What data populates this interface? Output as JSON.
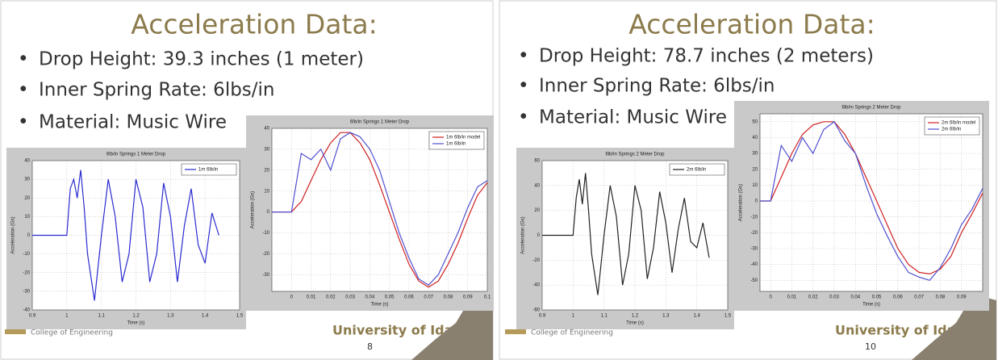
{
  "slides": [
    {
      "title": "Acceleration Data:",
      "bullets": [
        "Drop Height: 39.3 inches  (1 meter)",
        "Inner Spring Rate: 6lbs/in",
        "Material: Music Wire"
      ],
      "footer": {
        "college": "College of Engineering",
        "university": "University of Idaho",
        "page": "8"
      }
    },
    {
      "title": "Acceleration Data:",
      "bullets": [
        "Drop Height: 78.7 inches  (2 meters)",
        "Inner Spring Rate: 6lbs/in",
        "Material: Music Wire"
      ],
      "footer": {
        "college": "College of Engineering",
        "university": "University of Idaho",
        "page": "10"
      }
    }
  ],
  "chart_data": [
    {
      "type": "line",
      "title": "6lb/in Springs 1 Meter Drop",
      "xlabel": "Time (s)",
      "ylabel": "Acceleration (Gs)",
      "x": [
        0.9,
        0.95,
        1.0,
        1.01,
        1.02,
        1.03,
        1.04,
        1.05,
        1.06,
        1.08,
        1.1,
        1.12,
        1.14,
        1.16,
        1.18,
        1.2,
        1.22,
        1.24,
        1.26,
        1.28,
        1.3,
        1.32,
        1.34,
        1.36,
        1.38,
        1.4,
        1.42,
        1.44
      ],
      "series": [
        {
          "name": "1m 6lb/in",
          "color": "#2a2ad0",
          "values": [
            0,
            0,
            0,
            25,
            30,
            20,
            35,
            15,
            -10,
            -35,
            0,
            30,
            10,
            -25,
            -10,
            30,
            15,
            -25,
            -10,
            28,
            10,
            -25,
            5,
            25,
            -5,
            -15,
            12,
            0
          ]
        }
      ],
      "xlim": [
        0.9,
        1.5
      ],
      "xticks": [
        0.9,
        1,
        1.1,
        1.2,
        1.3,
        1.4,
        1.5
      ],
      "ylim": [
        -40,
        40
      ],
      "yticks": [
        -40,
        -30,
        -20,
        -10,
        0,
        10,
        20,
        30,
        40
      ],
      "grid": true,
      "legend": "upper right"
    },
    {
      "type": "line",
      "title": "6lb/in Springs 1 Meter Drop",
      "xlabel": "Time (s)",
      "ylabel": "Acceleration (Gs)",
      "x": [
        -0.01,
        -0.005,
        0,
        0.005,
        0.01,
        0.015,
        0.02,
        0.025,
        0.03,
        0.035,
        0.04,
        0.045,
        0.05,
        0.055,
        0.06,
        0.065,
        0.07,
        0.075,
        0.08,
        0.085,
        0.09,
        0.095,
        0.1
      ],
      "series": [
        {
          "name": "1m 6lb/in model",
          "color": "#d02020",
          "values": [
            0,
            0,
            0,
            5,
            15,
            25,
            33,
            38,
            38,
            33,
            25,
            13,
            0,
            -13,
            -25,
            -33,
            -36,
            -33,
            -25,
            -15,
            -3,
            8,
            14
          ]
        },
        {
          "name": "1m 6lb/in",
          "color": "#5050d0",
          "values": [
            0,
            0,
            0,
            28,
            25,
            30,
            20,
            35,
            38,
            36,
            30,
            20,
            5,
            -10,
            -22,
            -32,
            -35,
            -30,
            -20,
            -10,
            2,
            12,
            15
          ]
        }
      ],
      "xlim": [
        -0.01,
        0.1
      ],
      "xticks": [
        0,
        0.01,
        0.02,
        0.03,
        0.04,
        0.05,
        0.06,
        0.07,
        0.08,
        0.09,
        0.1
      ],
      "ylim": [
        -38,
        40
      ],
      "yticks": [
        -30,
        -20,
        -10,
        0,
        10,
        20,
        30,
        40
      ],
      "grid": true,
      "legend": "upper right"
    },
    {
      "type": "line",
      "title": "6lb/in Springs 2 Meter Drop",
      "xlabel": "Time (s)",
      "ylabel": "Acceleration (Gs)",
      "x": [
        0.9,
        0.95,
        1.0,
        1.01,
        1.02,
        1.03,
        1.04,
        1.05,
        1.06,
        1.08,
        1.1,
        1.12,
        1.14,
        1.16,
        1.18,
        1.2,
        1.22,
        1.24,
        1.26,
        1.28,
        1.3,
        1.32,
        1.34,
        1.36,
        1.38,
        1.4,
        1.42,
        1.44
      ],
      "series": [
        {
          "name": "2m 6lb/in",
          "color": "#222222",
          "values": [
            0,
            0,
            0,
            30,
            45,
            25,
            50,
            20,
            -15,
            -48,
            0,
            40,
            15,
            -40,
            -15,
            40,
            20,
            -35,
            -10,
            35,
            10,
            -30,
            5,
            30,
            -5,
            -10,
            10,
            -18
          ]
        }
      ],
      "xlim": [
        0.9,
        1.5
      ],
      "xticks": [
        0.9,
        1,
        1.1,
        1.2,
        1.3,
        1.4,
        1.5
      ],
      "ylim": [
        -60,
        60
      ],
      "yticks": [
        -60,
        -40,
        -20,
        0,
        20,
        40,
        60
      ],
      "grid": true,
      "legend": "upper right"
    },
    {
      "type": "line",
      "title": "6lb/in Springs 2 Meter Drop",
      "xlabel": "Time (s)",
      "ylabel": "Acceleration (Gs)",
      "x": [
        -0.005,
        0,
        0.005,
        0.01,
        0.015,
        0.02,
        0.025,
        0.03,
        0.035,
        0.04,
        0.045,
        0.05,
        0.055,
        0.06,
        0.065,
        0.07,
        0.075,
        0.08,
        0.085,
        0.09,
        0.095,
        0.1
      ],
      "series": [
        {
          "name": "2m 6lb/in model",
          "color": "#d02020",
          "values": [
            0,
            0,
            15,
            30,
            42,
            48,
            50,
            50,
            42,
            30,
            15,
            0,
            -15,
            -30,
            -40,
            -45,
            -46,
            -43,
            -35,
            -20,
            -8,
            5
          ]
        },
        {
          "name": "2m 6lb/in",
          "color": "#5050d0",
          "values": [
            0,
            0,
            35,
            25,
            40,
            30,
            45,
            50,
            38,
            30,
            10,
            -8,
            -22,
            -35,
            -45,
            -48,
            -50,
            -42,
            -30,
            -15,
            -5,
            8
          ]
        }
      ],
      "xlim": [
        -0.005,
        0.1
      ],
      "xticks": [
        0,
        0.01,
        0.02,
        0.03,
        0.04,
        0.05,
        0.06,
        0.07,
        0.08,
        0.09
      ],
      "ylim": [
        -57,
        55
      ],
      "yticks": [
        -50,
        -40,
        -30,
        -20,
        -10,
        0,
        10,
        20,
        30,
        40,
        50
      ],
      "grid": true,
      "legend": "upper right"
    }
  ]
}
